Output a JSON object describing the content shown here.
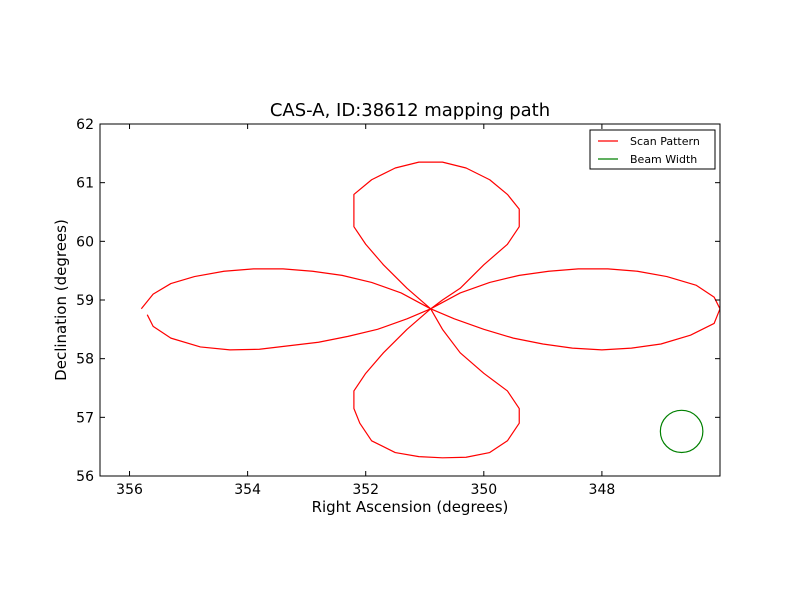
{
  "chart_data": {
    "type": "line",
    "title": "CAS-A, ID:38612 mapping path",
    "xlabel": "Right Ascension (degrees)",
    "ylabel": "Declination (degrees)",
    "xlim": [
      356.5,
      346.0
    ],
    "ylim": [
      56,
      62
    ],
    "x_ticks": [
      356,
      354,
      352,
      350,
      348
    ],
    "x_tick_labels": [
      "356",
      "354",
      "352",
      "350",
      "348"
    ],
    "y_ticks": [
      56,
      57,
      58,
      59,
      60,
      61,
      62
    ],
    "y_tick_labels": [
      "56",
      "57",
      "58",
      "59",
      "60",
      "61",
      "62"
    ],
    "grid": false,
    "legend_position": "top-right",
    "series": [
      {
        "name": "Scan Pattern",
        "color": "#ff0000",
        "x": [
          355.8,
          355.6,
          355.3,
          354.9,
          354.4,
          353.9,
          353.4,
          352.9,
          352.4,
          351.9,
          351.4,
          350.9,
          350.4,
          349.9,
          349.4,
          348.9,
          348.4,
          347.9,
          347.4,
          346.9,
          346.4,
          346.1,
          346.0,
          346.1,
          346.5,
          347.0,
          347.5,
          348.0,
          348.5,
          349.0,
          349.5,
          350.0,
          350.5,
          350.9,
          350.7,
          350.4,
          350.0,
          349.6,
          349.4,
          349.4,
          349.6,
          349.9,
          350.3,
          350.7,
          351.1,
          351.5,
          351.9,
          352.1,
          352.2,
          352.2,
          352.0,
          351.7,
          351.3,
          350.9,
          351.3,
          351.7,
          352.0,
          352.2,
          352.2,
          352.2,
          351.9,
          351.5,
          351.1,
          350.7,
          350.3,
          349.9,
          349.6,
          349.4,
          349.4,
          349.6,
          350.0,
          350.4,
          350.7,
          350.9,
          351.3,
          351.8,
          352.3,
          352.8,
          353.3,
          353.8,
          354.3,
          354.8,
          355.3,
          355.6,
          355.7
        ],
        "y": [
          58.85,
          59.1,
          59.28,
          59.4,
          59.49,
          59.53,
          59.53,
          59.49,
          59.42,
          59.3,
          59.12,
          58.85,
          59.12,
          59.3,
          59.42,
          59.49,
          59.53,
          59.53,
          59.49,
          59.4,
          59.25,
          59.05,
          58.85,
          58.6,
          58.4,
          58.25,
          58.18,
          58.15,
          58.18,
          58.25,
          58.35,
          58.5,
          58.68,
          58.85,
          58.5,
          58.1,
          57.75,
          57.45,
          57.15,
          56.9,
          56.6,
          56.4,
          56.32,
          56.31,
          56.33,
          56.4,
          56.6,
          56.9,
          57.15,
          57.45,
          57.75,
          58.1,
          58.5,
          58.85,
          59.2,
          59.6,
          59.95,
          60.25,
          60.55,
          60.8,
          61.05,
          61.25,
          61.35,
          61.35,
          61.25,
          61.05,
          60.8,
          60.55,
          60.25,
          59.95,
          59.6,
          59.2,
          59.0,
          58.85,
          58.68,
          58.5,
          58.38,
          58.28,
          58.22,
          58.16,
          58.15,
          58.2,
          58.35,
          58.55,
          58.75
        ]
      },
      {
        "name": "Beam Width",
        "color": "#008000",
        "shape": "circle",
        "center": [
          346.65,
          56.76
        ],
        "radius_deg": 0.36
      }
    ]
  }
}
